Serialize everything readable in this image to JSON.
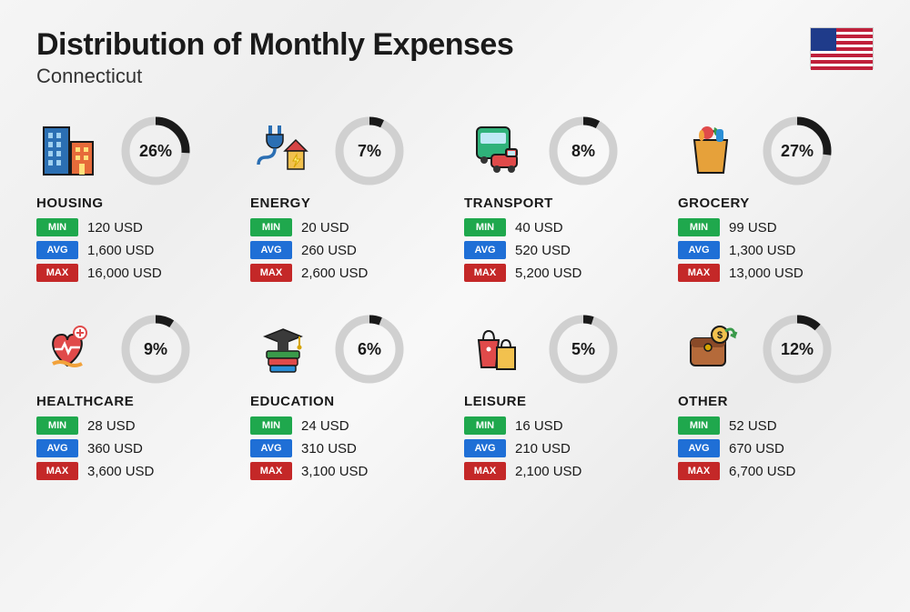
{
  "title": "Distribution of Monthly Expenses",
  "subtitle": "Connecticut",
  "colors": {
    "min_badge": "#1fa84d",
    "avg_badge": "#1f6fd6",
    "max_badge": "#c42828",
    "donut_track": "#d0d0d0",
    "donut_fill": "#1a1a1a",
    "text": "#1a1a1a"
  },
  "badges": {
    "min": "MIN",
    "avg": "AVG",
    "max": "MAX"
  },
  "flag": {
    "stripe_color": "#c0203b",
    "canton_color": "#1f3b8a"
  },
  "donut": {
    "radius": 33,
    "stroke": 9
  },
  "categories": [
    {
      "key": "housing",
      "name": "HOUSING",
      "pct": 26,
      "min": "120 USD",
      "avg": "1,600 USD",
      "max": "16,000 USD",
      "icon": "housing-icon"
    },
    {
      "key": "energy",
      "name": "ENERGY",
      "pct": 7,
      "min": "20 USD",
      "avg": "260 USD",
      "max": "2,600 USD",
      "icon": "energy-icon"
    },
    {
      "key": "transport",
      "name": "TRANSPORT",
      "pct": 8,
      "min": "40 USD",
      "avg": "520 USD",
      "max": "5,200 USD",
      "icon": "transport-icon"
    },
    {
      "key": "grocery",
      "name": "GROCERY",
      "pct": 27,
      "min": "99 USD",
      "avg": "1,300 USD",
      "max": "13,000 USD",
      "icon": "grocery-icon"
    },
    {
      "key": "healthcare",
      "name": "HEALTHCARE",
      "pct": 9,
      "min": "28 USD",
      "avg": "360 USD",
      "max": "3,600 USD",
      "icon": "healthcare-icon"
    },
    {
      "key": "education",
      "name": "EDUCATION",
      "pct": 6,
      "min": "24 USD",
      "avg": "310 USD",
      "max": "3,100 USD",
      "icon": "education-icon"
    },
    {
      "key": "leisure",
      "name": "LEISURE",
      "pct": 5,
      "min": "16 USD",
      "avg": "210 USD",
      "max": "2,100 USD",
      "icon": "leisure-icon"
    },
    {
      "key": "other",
      "name": "OTHER",
      "pct": 12,
      "min": "52 USD",
      "avg": "670 USD",
      "max": "6,700 USD",
      "icon": "other-icon"
    }
  ]
}
